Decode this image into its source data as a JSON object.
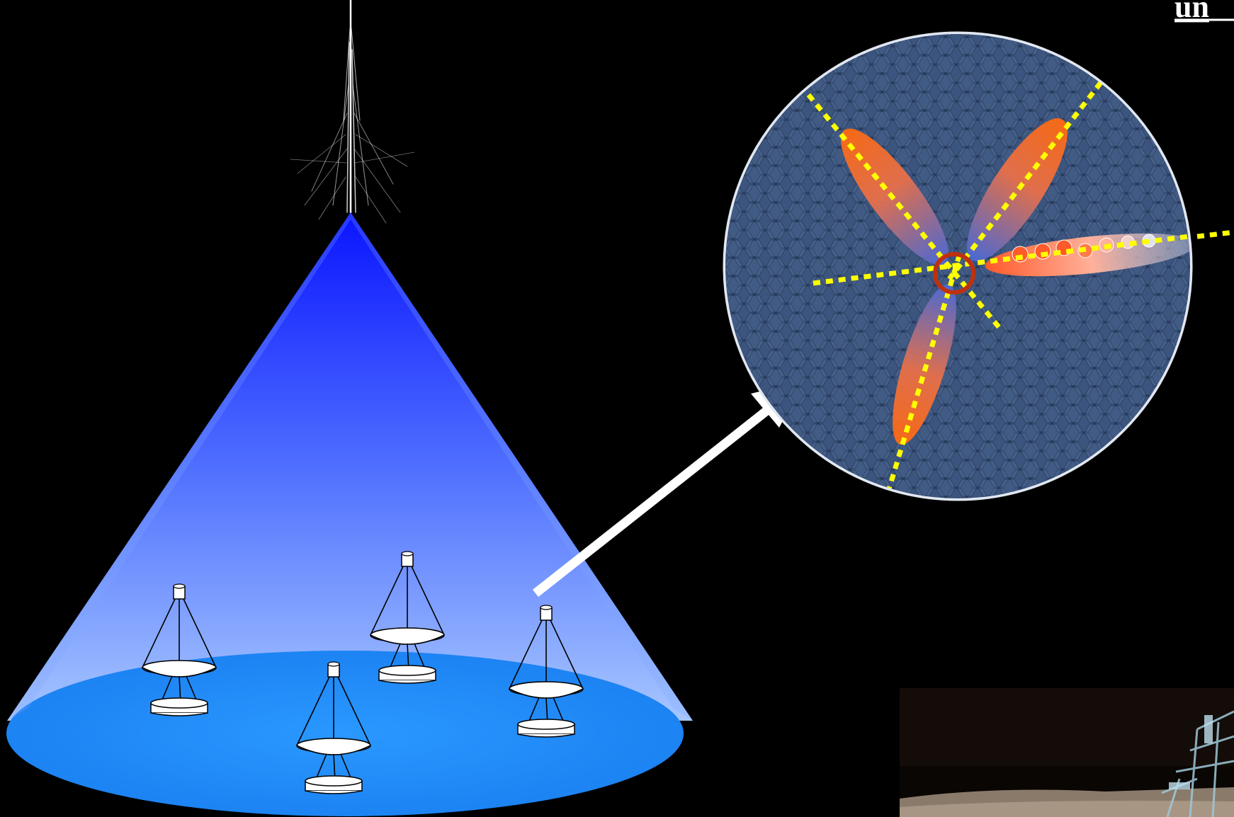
{
  "header_fragment": "un",
  "colors": {
    "background": "#000000",
    "cone_top": "#0a14ff",
    "cone_bottom": "#8fb6ff",
    "ground_ellipse": "#1e90ff",
    "camera_pixels": "#3e5a80",
    "shower_images": "#ff6a1a",
    "axis_lines": "#ffff00",
    "source_marker": "#c0300f",
    "arrow": "#ffffff"
  },
  "telescopes": [
    {
      "id": "telescope-1"
    },
    {
      "id": "telescope-2"
    },
    {
      "id": "telescope-3"
    },
    {
      "id": "telescope-4"
    }
  ]
}
